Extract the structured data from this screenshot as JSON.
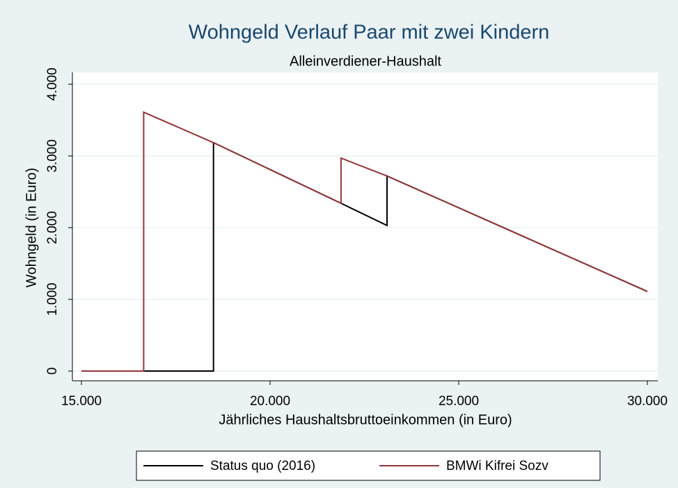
{
  "chart_data": {
    "type": "line",
    "title": "Wohngeld Verlauf Paar mit zwei Kindern",
    "subtitle": "Alleinverdiener-Haushalt",
    "x_label": "Jährliches Haushaltsbruttoeinkommen (in Euro)",
    "y_label": "Wohngeld (in Euro)",
    "x": [
      15000,
      16650,
      16650,
      18500,
      18500,
      21880,
      21880,
      23100,
      23100,
      30000
    ],
    "series": [
      {
        "name": "Status quo (2016)",
        "color": "#000000",
        "values": [
          0,
          0,
          0,
          0,
          3185,
          2340,
          2340,
          2030,
          2720,
          1110
        ]
      },
      {
        "name": "BMWi Kifrei Sozv",
        "color": "#90353b",
        "values": [
          0,
          0,
          3610,
          3185,
          3185,
          2340,
          2970,
          2720,
          2720,
          1110
        ]
      }
    ],
    "xlim": [
      15000,
      30000
    ],
    "xticks": [
      {
        "value": 15000,
        "label": "15.000"
      },
      {
        "value": 20000,
        "label": "20.000"
      },
      {
        "value": 25000,
        "label": "25.000"
      },
      {
        "value": 30000,
        "label": "30.000"
      }
    ],
    "ylim": [
      0,
      4000
    ],
    "yticks": [
      0,
      {
        "value": 1000,
        "label": "1.000"
      },
      {
        "value": 2000,
        "label": "2.000"
      },
      {
        "value": 3000,
        "label": "3.000"
      },
      {
        "value": 4000,
        "label": "4.000"
      }
    ],
    "grid": true,
    "legend": "bottom"
  }
}
